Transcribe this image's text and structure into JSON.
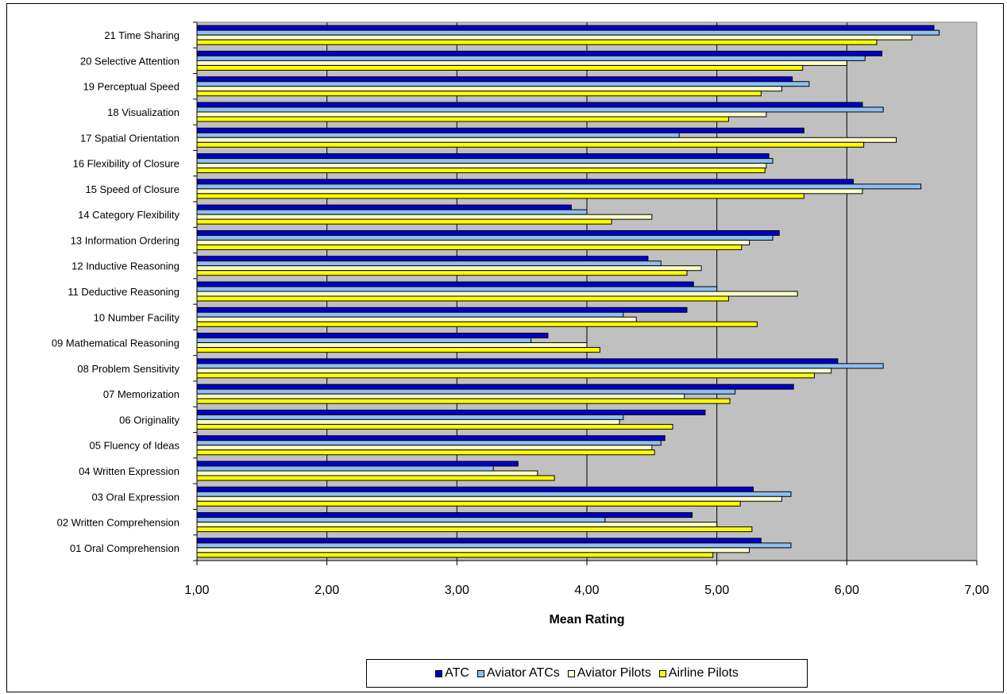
{
  "chart_data": {
    "type": "bar",
    "orientation": "horizontal",
    "categories": [
      "01 Oral Comprehension",
      "02 Written Comprehension",
      "03 Oral Expression",
      "04 Written Expression",
      "05 Fluency of Ideas",
      "06 Originality",
      "07 Memorization",
      "08 Problem Sensitivity",
      "09 Mathematical Reasoning",
      "10 Number Facility",
      "11 Deductive Reasoning",
      "12 Inductive Reasoning",
      "13 Information Ordering",
      "14 Category Flexibility",
      "15 Speed of Closure",
      "16 Flexibility of Closure",
      "17 Spatial Orientation",
      "18 Visualization",
      "19 Perceptual Speed",
      "20 Selective Attention",
      "21 Time Sharing"
    ],
    "series": [
      {
        "name": "ATC",
        "color": "#0000cc",
        "values": [
          5.34,
          4.81,
          5.28,
          3.47,
          4.6,
          4.91,
          5.59,
          5.93,
          3.7,
          4.77,
          4.82,
          4.47,
          5.48,
          3.88,
          6.05,
          5.4,
          5.67,
          6.12,
          5.58,
          6.27,
          6.67
        ]
      },
      {
        "name": "Aviator ATCs",
        "color": "#8fbfef",
        "values": [
          5.57,
          4.14,
          5.57,
          3.28,
          4.57,
          4.28,
          5.14,
          6.28,
          3.57,
          4.28,
          5.0,
          4.57,
          5.43,
          4.0,
          6.57,
          5.43,
          4.71,
          6.28,
          5.71,
          6.14,
          6.71
        ]
      },
      {
        "name": "Aviator Pilots",
        "color": "#ffffcc",
        "values": [
          5.25,
          5.0,
          5.5,
          3.62,
          4.5,
          4.25,
          4.75,
          5.88,
          4.0,
          4.38,
          5.62,
          4.88,
          5.25,
          4.5,
          6.12,
          5.38,
          6.38,
          5.38,
          5.5,
          6.0,
          6.5
        ]
      },
      {
        "name": "Airline Pilots",
        "color": "#ffff00",
        "values": [
          4.97,
          5.27,
          5.18,
          3.75,
          4.52,
          4.66,
          5.1,
          5.75,
          4.1,
          5.31,
          5.09,
          4.77,
          5.19,
          4.19,
          5.67,
          5.37,
          6.13,
          5.09,
          5.34,
          5.66,
          6.23
        ]
      }
    ],
    "xlabel": "Mean Rating",
    "ylabel": "",
    "xlim": [
      1,
      7
    ],
    "x_ticks": [
      "1,00",
      "2,00",
      "3,00",
      "4,00",
      "5,00",
      "6,00",
      "7,00"
    ],
    "plot_background": "#c0c0c0",
    "grid": "vertical",
    "legend_position": "bottom"
  }
}
